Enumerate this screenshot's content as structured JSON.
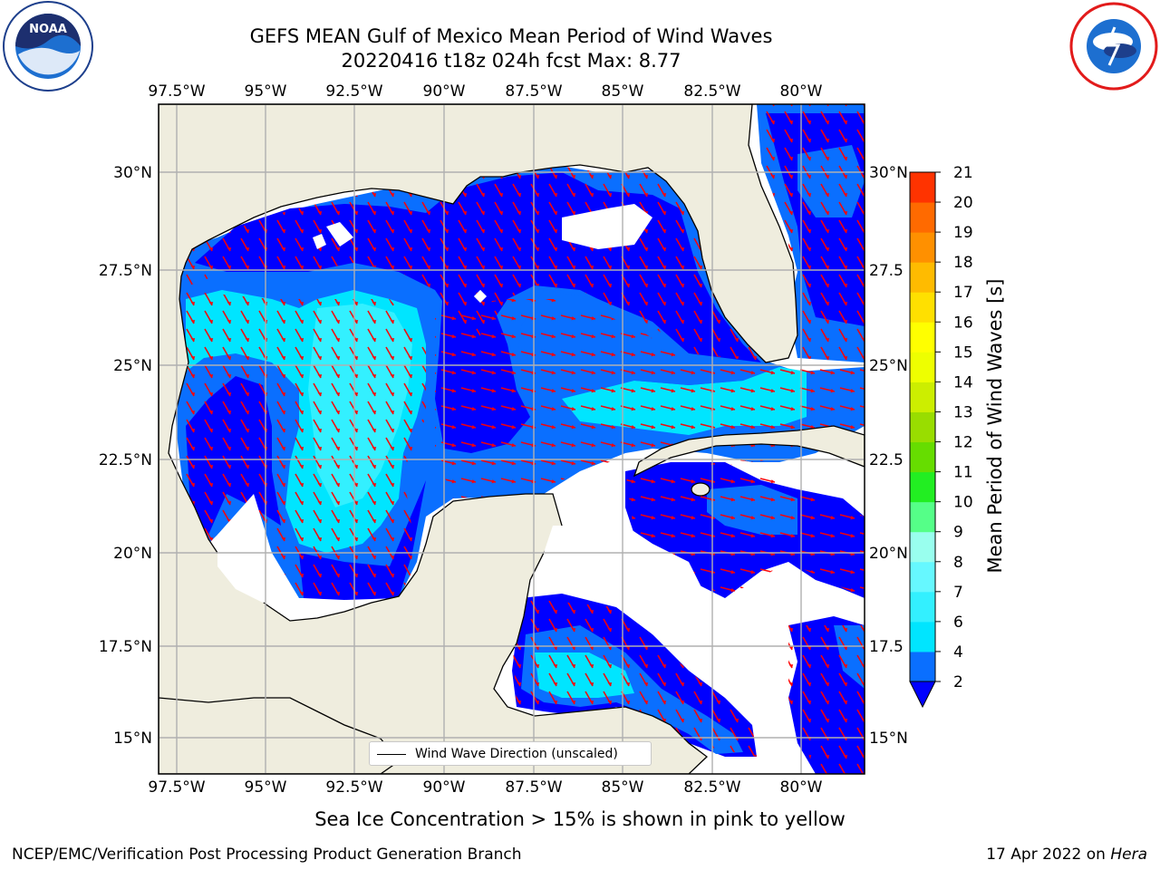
{
  "title": {
    "line1": "GEFS MEAN Gulf of Mexico Mean Period of Wind Waves",
    "line2": "20220416 t18z 024h fcst   Max: 8.77"
  },
  "logos": {
    "left": "noaa-logo",
    "right": "national-weather-service-logo"
  },
  "map": {
    "lon_labels": [
      "97.5°W",
      "95°W",
      "92.5°W",
      "90°W",
      "87.5°W",
      "85°W",
      "82.5°W",
      "80°W"
    ],
    "lat_labels_left": [
      "30°N",
      "27.5°N",
      "25°N",
      "22.5°N",
      "20°N",
      "17.5°N",
      "15°N"
    ],
    "lat_labels_right": [
      "30°N",
      "27.5",
      "25°N",
      "22.5",
      "20°N",
      "17.5",
      "15°N"
    ],
    "lon_range": [
      -98.0,
      -78.4
    ],
    "lat_range": [
      14.0,
      31.8
    ],
    "land_color": "#efedde",
    "ocean_no_data_color": "#ffffff",
    "arrow_color": "#ff0000",
    "coast_color": "#000000",
    "grid_color": "#b0b0b0"
  },
  "legend": {
    "label": "Wind Wave Direction (unscaled)"
  },
  "colorbar": {
    "title": "Mean Period of Wind Waves [s]",
    "ticks": [
      "2",
      "4",
      "6",
      "7",
      "8",
      "9",
      "10",
      "11",
      "12",
      "13",
      "14",
      "15",
      "16",
      "17",
      "18",
      "19",
      "20",
      "21"
    ],
    "colors": [
      "#0a6fff",
      "#00e5ff",
      "#33f0ff",
      "#66f8ff",
      "#99ffee",
      "#55ff88",
      "#22ee22",
      "#66dd00",
      "#99dd00",
      "#ccee00",
      "#eeff00",
      "#ffff00",
      "#ffe000",
      "#ffbb00",
      "#ff9000",
      "#ff6a00",
      "#ff3300",
      "#ff0000"
    ],
    "extend_color": "#0000ff"
  },
  "caption": "Sea Ice Concentration > 15% is shown in pink to yellow",
  "footer": {
    "left": "NCEP/EMC/Verification Post Processing Product Generation Branch",
    "right_prefix": "17 Apr 2022 on ",
    "right_host": "Hera"
  }
}
